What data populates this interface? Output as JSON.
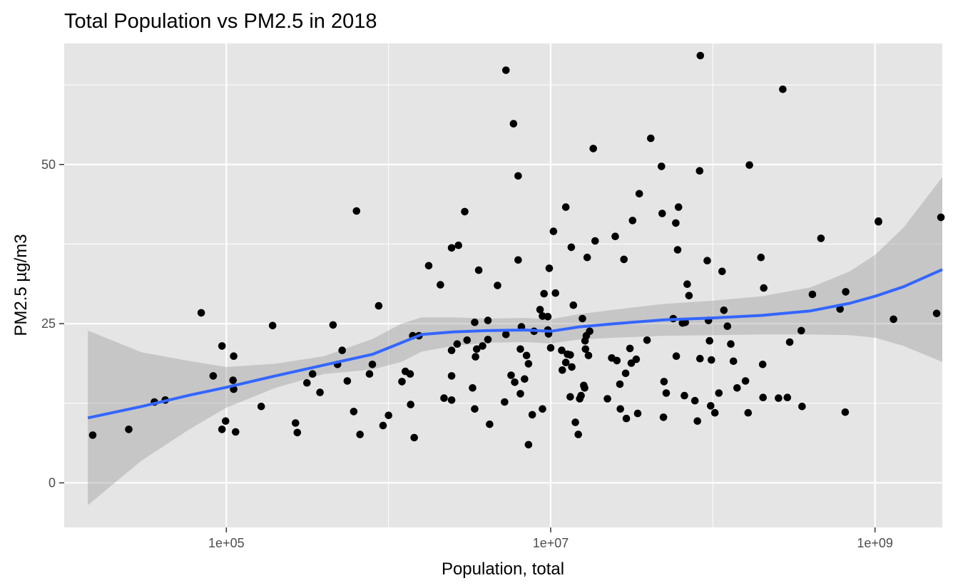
{
  "chart_data": {
    "type": "scatter",
    "title": "Total Population vs PM2.5 in 2018",
    "xlabel": "Population, total",
    "ylabel": "PM2.5 µg/m3",
    "x_scale": "log10",
    "xlim": [
      10000,
      2600000000
    ],
    "ylim": [
      -7,
      69
    ],
    "x_ticks": [
      {
        "value": 100000,
        "label": "1e+05"
      },
      {
        "value": 10000000,
        "label": "1e+07"
      },
      {
        "value": 1000000000,
        "label": "1e+09"
      }
    ],
    "y_ticks": [
      {
        "value": 0,
        "label": "0"
      },
      {
        "value": 25,
        "label": "25"
      },
      {
        "value": 50,
        "label": "50"
      }
    ],
    "grid": true,
    "legend": "none",
    "colors": {
      "panel": "#e5e5e5",
      "grid_major": "#ffffff",
      "point": "#000000",
      "smooth_line": "#3366ff",
      "confidence_band": "#999999"
    },
    "points": [
      [
        15000,
        7.5
      ],
      [
        25000,
        8.4
      ],
      [
        36000,
        12.7
      ],
      [
        42000,
        13.0
      ],
      [
        70000,
        26.7
      ],
      [
        83000,
        16.8
      ],
      [
        94000,
        21.5
      ],
      [
        94000,
        8.4
      ],
      [
        99000,
        9.7
      ],
      [
        110000,
        16.1
      ],
      [
        111000,
        19.9
      ],
      [
        111000,
        14.7
      ],
      [
        114000,
        8.0
      ],
      [
        164000,
        12.0
      ],
      [
        193000,
        24.7
      ],
      [
        267000,
        9.4
      ],
      [
        274000,
        7.9
      ],
      [
        314000,
        15.7
      ],
      [
        340000,
        17.1
      ],
      [
        378000,
        14.2
      ],
      [
        455000,
        24.8
      ],
      [
        485000,
        18.6
      ],
      [
        518000,
        20.8
      ],
      [
        557000,
        16.0
      ],
      [
        610000,
        11.2
      ],
      [
        635000,
        42.7
      ],
      [
        667000,
        7.6
      ],
      [
        763000,
        17.1
      ],
      [
        795000,
        18.6
      ],
      [
        870000,
        27.8
      ],
      [
        925000,
        9.0
      ],
      [
        1000000,
        10.6
      ],
      [
        1210000,
        15.9
      ],
      [
        1270000,
        17.5
      ],
      [
        1360000,
        17.1
      ],
      [
        1370000,
        12.3
      ],
      [
        1410000,
        23.1
      ],
      [
        1440000,
        7.1
      ],
      [
        1540000,
        23.1
      ],
      [
        1770000,
        34.1
      ],
      [
        2090000,
        31.1
      ],
      [
        2200000,
        13.3
      ],
      [
        2450000,
        36.9
      ],
      [
        2450000,
        16.8
      ],
      [
        2450000,
        20.8
      ],
      [
        2450000,
        13.0
      ],
      [
        2650000,
        21.8
      ],
      [
        2700000,
        37.3
      ],
      [
        2950000,
        42.6
      ],
      [
        3050000,
        22.4
      ],
      [
        3300000,
        14.9
      ],
      [
        3400000,
        25.2
      ],
      [
        3400000,
        11.6
      ],
      [
        3440000,
        19.8
      ],
      [
        3500000,
        21.0
      ],
      [
        3600000,
        33.4
      ],
      [
        3800000,
        21.5
      ],
      [
        4100000,
        22.5
      ],
      [
        4100000,
        25.5
      ],
      [
        4200000,
        9.2
      ],
      [
        4700000,
        31.0
      ],
      [
        5200000,
        12.7
      ],
      [
        5300000,
        64.8
      ],
      [
        5300000,
        23.3
      ],
      [
        5700000,
        16.9
      ],
      [
        5900000,
        56.4
      ],
      [
        6000000,
        15.8
      ],
      [
        6300000,
        35.0
      ],
      [
        6300000,
        48.2
      ],
      [
        6500000,
        14.0
      ],
      [
        6500000,
        21.0
      ],
      [
        6600000,
        24.5
      ],
      [
        6900000,
        16.3
      ],
      [
        7100000,
        20.0
      ],
      [
        7300000,
        18.7
      ],
      [
        7300000,
        6.0
      ],
      [
        7700000,
        10.7
      ],
      [
        7900000,
        23.8
      ],
      [
        8600000,
        27.2
      ],
      [
        8900000,
        26.2
      ],
      [
        8900000,
        11.6
      ],
      [
        9100000,
        29.7
      ],
      [
        9600000,
        26.1
      ],
      [
        9600000,
        24.0
      ],
      [
        9700000,
        23.4
      ],
      [
        9800000,
        33.7
      ],
      [
        10000000,
        21.2
      ],
      [
        10400000,
        39.5
      ],
      [
        10700000,
        29.8
      ],
      [
        11700000,
        20.8
      ],
      [
        11800000,
        17.7
      ],
      [
        12400000,
        43.3
      ],
      [
        12400000,
        18.9
      ],
      [
        12700000,
        20.2
      ],
      [
        13200000,
        20.1
      ],
      [
        13200000,
        13.5
      ],
      [
        13400000,
        37.0
      ],
      [
        13500000,
        18.2
      ],
      [
        13800000,
        27.9
      ],
      [
        14200000,
        9.5
      ],
      [
        14800000,
        7.6
      ],
      [
        15100000,
        13.2
      ],
      [
        15400000,
        13.7
      ],
      [
        15700000,
        25.8
      ],
      [
        16000000,
        15.3
      ],
      [
        16200000,
        14.9
      ],
      [
        16300000,
        22.3
      ],
      [
        16400000,
        21.0
      ],
      [
        16600000,
        23.1
      ],
      [
        16800000,
        35.4
      ],
      [
        17100000,
        20.0
      ],
      [
        17400000,
        23.8
      ],
      [
        18300000,
        52.5
      ],
      [
        18800000,
        38.0
      ],
      [
        22400000,
        13.2
      ],
      [
        23800000,
        19.6
      ],
      [
        25000000,
        38.7
      ],
      [
        25600000,
        19.2
      ],
      [
        26700000,
        15.5
      ],
      [
        26900000,
        11.6
      ],
      [
        28300000,
        35.1
      ],
      [
        29000000,
        17.2
      ],
      [
        29300000,
        10.1
      ],
      [
        30800000,
        21.1
      ],
      [
        31400000,
        18.8
      ],
      [
        32000000,
        41.2
      ],
      [
        33700000,
        19.4
      ],
      [
        34400000,
        10.9
      ],
      [
        35200000,
        45.4
      ],
      [
        39300000,
        22.4
      ],
      [
        41400000,
        54.1
      ],
      [
        48200000,
        49.7
      ],
      [
        48700000,
        42.3
      ],
      [
        49600000,
        10.3
      ],
      [
        50000000,
        15.9
      ],
      [
        51600000,
        14.1
      ],
      [
        57000000,
        25.8
      ],
      [
        59100000,
        40.8
      ],
      [
        59500000,
        19.9
      ],
      [
        60700000,
        36.6
      ],
      [
        61400000,
        43.3
      ],
      [
        65000000,
        25.1
      ],
      [
        66800000,
        13.7
      ],
      [
        67600000,
        25.2
      ],
      [
        69500000,
        31.2
      ],
      [
        71300000,
        29.4
      ],
      [
        77500000,
        12.9
      ],
      [
        80300000,
        9.7
      ],
      [
        82900000,
        49.0
      ],
      [
        83300000,
        19.5
      ],
      [
        83700000,
        67.1
      ],
      [
        92400000,
        34.9
      ],
      [
        94000000,
        25.5
      ],
      [
        95400000,
        22.3
      ],
      [
        97000000,
        12.1
      ],
      [
        98000000,
        19.3
      ],
      [
        103000000,
        11.0
      ],
      [
        109000000,
        14.1
      ],
      [
        114000000,
        33.2
      ],
      [
        117000000,
        27.1
      ],
      [
        123000000,
        24.6
      ],
      [
        129000000,
        21.8
      ],
      [
        134000000,
        19.1
      ],
      [
        141000000,
        14.9
      ],
      [
        159000000,
        16.0
      ],
      [
        165000000,
        11.0
      ],
      [
        168000000,
        49.9
      ],
      [
        198000000,
        35.4
      ],
      [
        204000000,
        13.4
      ],
      [
        206000000,
        30.6
      ],
      [
        203000000,
        18.6
      ],
      [
        254000000,
        13.3
      ],
      [
        270000000,
        61.8
      ],
      [
        288000000,
        13.4
      ],
      [
        298000000,
        22.1
      ],
      [
        351000000,
        23.9
      ],
      [
        355000000,
        12.0
      ],
      [
        411000000,
        29.6
      ],
      [
        464000000,
        38.4
      ],
      [
        609000000,
        27.3
      ],
      [
        660000000,
        30.0
      ],
      [
        655000000,
        11.1
      ],
      [
        1050000000,
        41.1
      ],
      [
        1050000000,
        41.0
      ],
      [
        1300000000,
        25.7
      ],
      [
        2400000000,
        26.6
      ],
      [
        2550000000,
        41.7
      ]
    ],
    "smooth_fit": {
      "method": "loess",
      "x": [
        14000,
        30000,
        60000,
        100000,
        200000,
        400000,
        800000,
        1200000,
        1600000,
        2500000,
        4000000,
        7000000,
        10000000,
        15000000,
        25000000,
        50000000,
        100000000,
        200000000,
        400000000,
        700000000,
        1000000000,
        1500000000,
        2600000000
      ],
      "y": [
        10.2,
        12.0,
        13.8,
        15.0,
        16.8,
        18.5,
        20.2,
        22.0,
        23.3,
        23.7,
        23.9,
        24.0,
        23.8,
        24.5,
        25.0,
        25.6,
        25.9,
        26.3,
        27.0,
        28.2,
        29.3,
        30.8,
        33.5
      ],
      "lower": [
        -3.5,
        3.5,
        8.5,
        11.8,
        14.9,
        17.1,
        17.8,
        19.0,
        20.6,
        21.5,
        22.0,
        22.1,
        21.9,
        22.5,
        22.8,
        23.1,
        23.2,
        23.3,
        23.3,
        23.2,
        22.8,
        21.5,
        19.0
      ],
      "upper": [
        23.9,
        20.5,
        19.1,
        18.2,
        18.7,
        19.9,
        22.6,
        25.0,
        26.0,
        26.0,
        25.8,
        25.9,
        25.7,
        26.5,
        27.2,
        28.1,
        28.6,
        29.3,
        30.7,
        33.2,
        35.8,
        40.1,
        48.0
      ]
    }
  }
}
